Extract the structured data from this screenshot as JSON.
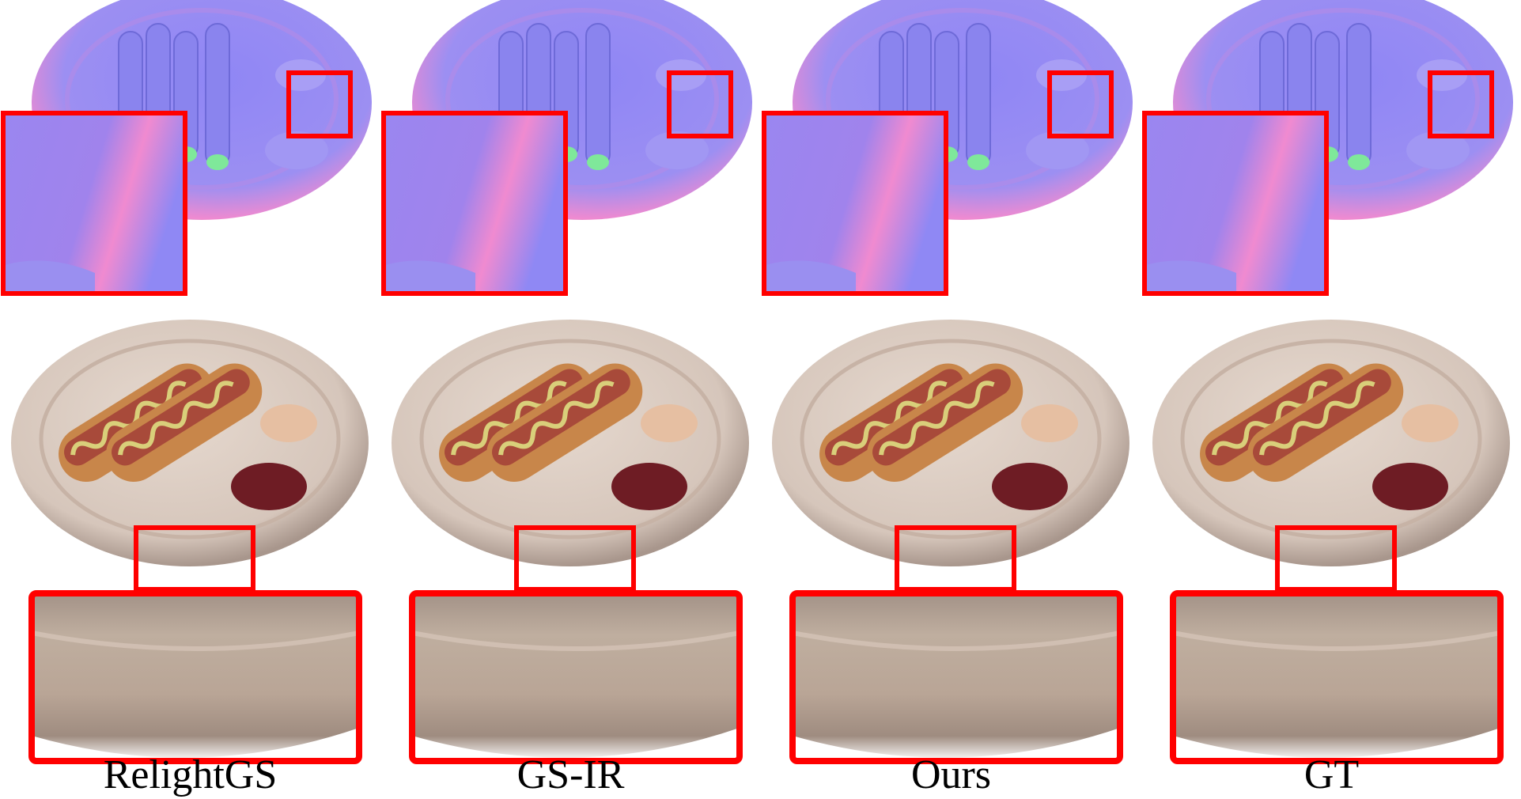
{
  "figure": {
    "columns": [
      {
        "label": "RelightGS",
        "normal_style": "smooth-blobby"
      },
      {
        "label": "GS-IR",
        "normal_style": "noisy"
      },
      {
        "label": "Ours",
        "normal_style": "smooth"
      },
      {
        "label": "GT",
        "normal_style": "detailed"
      }
    ],
    "rows": [
      "normal-map",
      "rendering",
      "zoom-inset"
    ],
    "colors": {
      "highlight_box": "#ff0000",
      "normal_base": "#8f86f5",
      "normal_pink": "#f08ad0",
      "normal_green": "#7fe89a",
      "plate": "#d6c6bb",
      "plate_shadow": "#a8968c",
      "bun": "#c8864a",
      "sausage": "#a84a3a",
      "mustard": "#d9cf7a",
      "ketchup": "#6e1c24",
      "mayo_sauce": "#e6bfa2"
    }
  }
}
